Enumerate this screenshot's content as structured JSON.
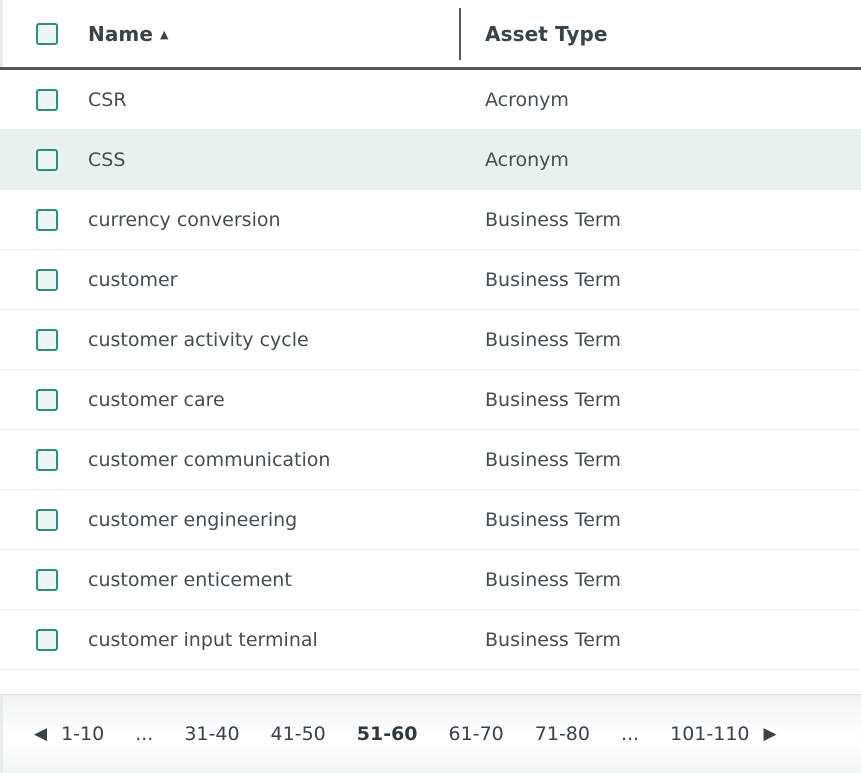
{
  "table": {
    "header": {
      "select_all_state": "unchecked",
      "columns": [
        {
          "label": "Name",
          "sort": "ascending"
        },
        {
          "label": "Asset Type",
          "sort": null
        }
      ]
    },
    "rows": [
      {
        "name": "CSR",
        "asset_type": "Acronym",
        "checked": false,
        "highlighted": false
      },
      {
        "name": "CSS",
        "asset_type": "Acronym",
        "checked": false,
        "highlighted": true
      },
      {
        "name": "currency conversion",
        "asset_type": "Business Term",
        "checked": false,
        "highlighted": false
      },
      {
        "name": "customer",
        "asset_type": "Business Term",
        "checked": false,
        "highlighted": false
      },
      {
        "name": "customer activity cycle",
        "asset_type": "Business Term",
        "checked": false,
        "highlighted": false
      },
      {
        "name": "customer care",
        "asset_type": "Business Term",
        "checked": false,
        "highlighted": false
      },
      {
        "name": "customer communication",
        "asset_type": "Business Term",
        "checked": false,
        "highlighted": false
      },
      {
        "name": "customer engineering",
        "asset_type": "Business Term",
        "checked": false,
        "highlighted": false
      },
      {
        "name": "customer enticement",
        "asset_type": "Business Term",
        "checked": false,
        "highlighted": false
      },
      {
        "name": "customer input terminal",
        "asset_type": "Business Term",
        "checked": false,
        "highlighted": false
      }
    ]
  },
  "pagination": {
    "items": [
      {
        "label": "1-10",
        "current": false
      },
      {
        "label": "...",
        "current": false
      },
      {
        "label": "31-40",
        "current": false
      },
      {
        "label": "41-50",
        "current": false
      },
      {
        "label": "51-60",
        "current": true
      },
      {
        "label": "61-70",
        "current": false
      },
      {
        "label": "71-80",
        "current": false
      },
      {
        "label": "...",
        "current": false
      },
      {
        "label": "101-110",
        "current": false
      }
    ]
  },
  "icons": {
    "sort_ascending": "▲",
    "prev": "◀",
    "next": "▶"
  },
  "colors": {
    "accent_teal": "#2a8f7c",
    "checkbox_fill": "#edf5f2",
    "highlight_row": "#e9f1ef",
    "text_dark": "#3b4249",
    "header_border": "#54585d",
    "row_separator": "#eaedf0",
    "footer_border": "#dcdee0"
  }
}
